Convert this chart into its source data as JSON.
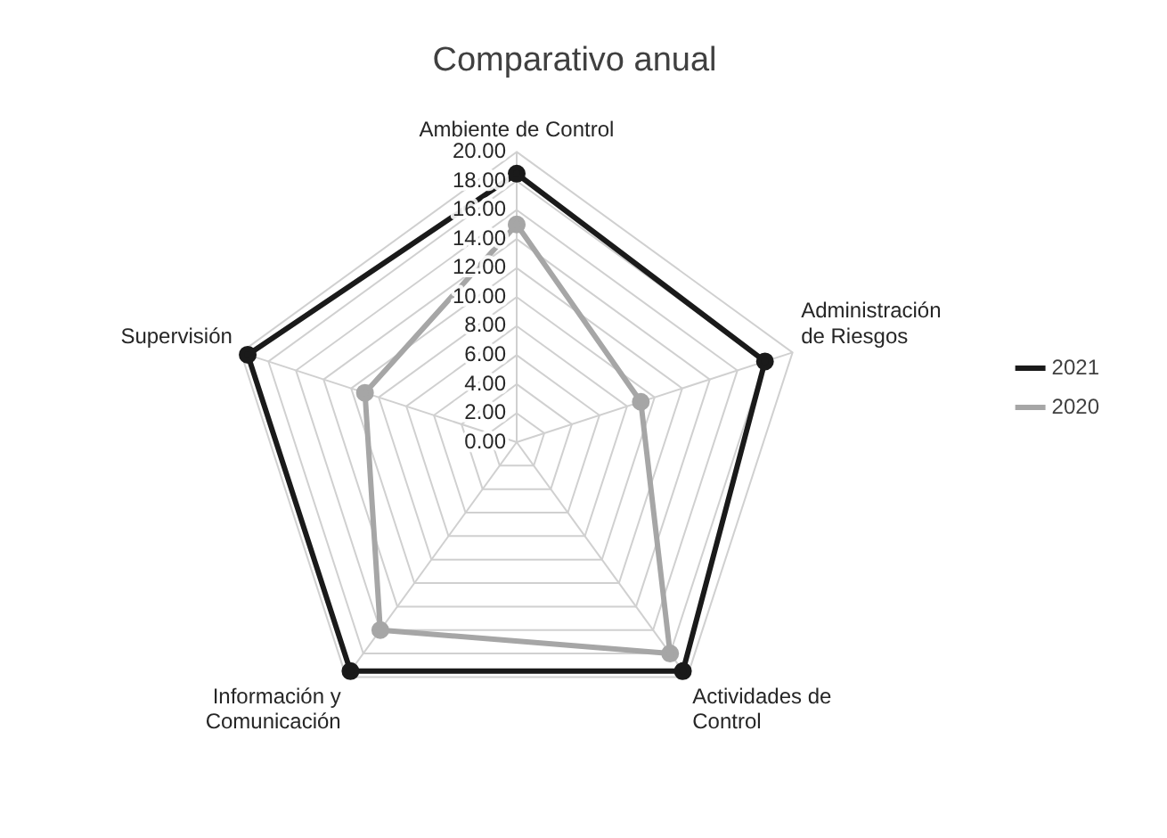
{
  "chart_data": {
    "type": "radar",
    "title": "Comparativo anual",
    "categories": [
      "Ambiente de Control",
      "Administración de Riesgos",
      "Actividades de Control",
      "Información y Comunicación",
      "Supervisión"
    ],
    "series": [
      {
        "name": "2021",
        "color": "#1a1a1a",
        "values": [
          18.5,
          18,
          19.5,
          19.5,
          19.5
        ]
      },
      {
        "name": "2020",
        "color": "#a6a6a6",
        "values": [
          15,
          9,
          18,
          16,
          11
        ]
      }
    ],
    "ylim": [
      0,
      20
    ],
    "yticks": [
      {
        "value": 0,
        "label": "0.00"
      },
      {
        "value": 2,
        "label": "2.00"
      },
      {
        "value": 4,
        "label": "4.00"
      },
      {
        "value": 6,
        "label": "6.00"
      },
      {
        "value": 8,
        "label": "8.00"
      },
      {
        "value": 10,
        "label": "10.00"
      },
      {
        "value": 12,
        "label": "12.00"
      },
      {
        "value": 14,
        "label": "14.00"
      },
      {
        "value": 16,
        "label": "16.00"
      },
      {
        "value": 18,
        "label": "18.00"
      },
      {
        "value": 20,
        "label": "20.00"
      }
    ],
    "grid": true,
    "legend": "right",
    "marker": "circle"
  }
}
